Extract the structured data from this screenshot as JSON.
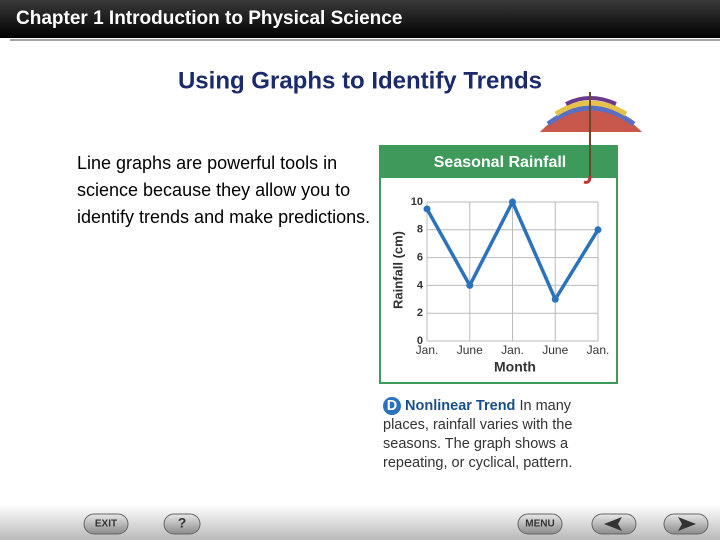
{
  "header": {
    "title": "Chapter 1  Introduction to Physical Science"
  },
  "slide": {
    "title": "Using Graphs to Identify Trends",
    "body": "Line graphs are powerful tools in science because they allow you to identify trends and make predictions."
  },
  "chart_data": {
    "type": "line",
    "title": "Seasonal Rainfall",
    "x_label": "Month",
    "y_label": "Rainfall (cm)",
    "categories": [
      "Jan.",
      "June",
      "Jan.",
      "June",
      "Jan."
    ],
    "values": [
      9.5,
      4,
      10,
      3,
      8
    ],
    "color": "#2b72bd",
    "ylim": [
      0,
      10
    ],
    "yticks": [
      0,
      2,
      4,
      6,
      8,
      10
    ],
    "grid": true
  },
  "caption": {
    "label": "D",
    "title": "Nonlinear Trend",
    "text": "In many places, rainfall varies with the seasons. The graph shows a repeating, or cyclical, pattern."
  },
  "nav": {
    "exit": "EXIT",
    "help": "?",
    "menu": "MENU"
  }
}
